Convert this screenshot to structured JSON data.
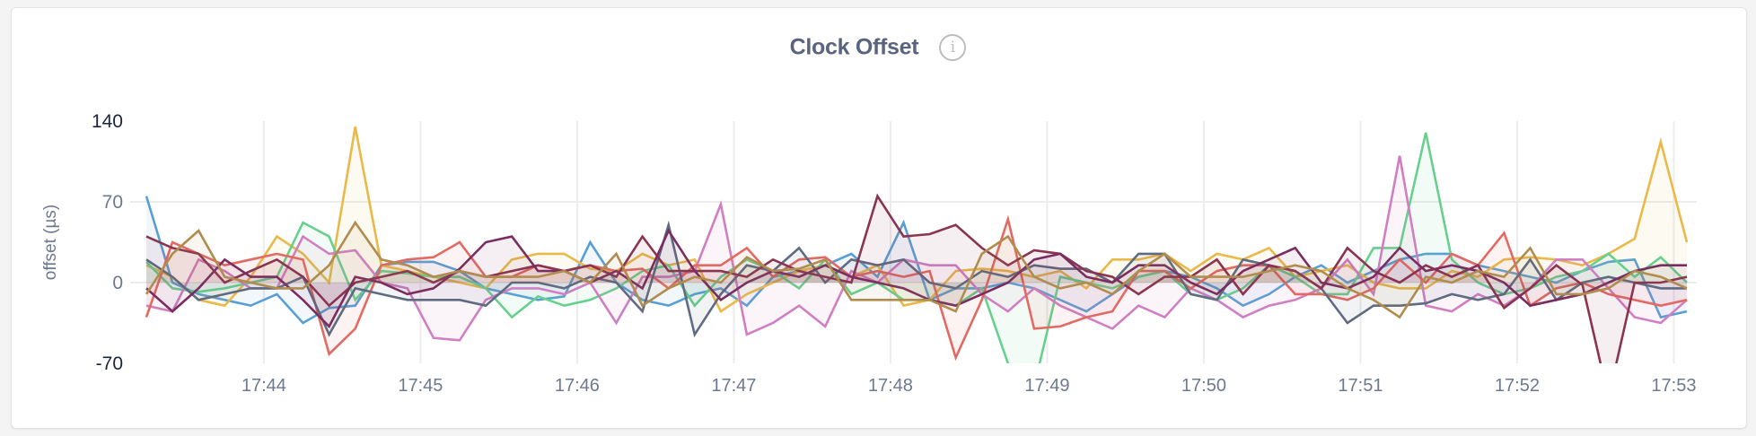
{
  "header": {
    "title": "Clock Offset",
    "info_icon": "info-circle-icon"
  },
  "chart_data": {
    "type": "area",
    "title": "Clock Offset",
    "xlabel": "",
    "ylabel": "offset (µs)",
    "ylim": [
      -70,
      140
    ],
    "yticks": [
      "140",
      "70",
      "0",
      "-70"
    ],
    "ytick_values": [
      140,
      70,
      0,
      -70
    ],
    "xticks": [
      "17:44",
      "17:45",
      "17:46",
      "17:47",
      "17:48",
      "17:49",
      "17:50",
      "17:51",
      "17:52",
      "17:53"
    ],
    "grid": true,
    "legend": "none",
    "x": [
      "17:43:15",
      "17:43:25",
      "17:43:35",
      "17:43:45",
      "17:43:55",
      "17:44:05",
      "17:44:15",
      "17:44:25",
      "17:44:35",
      "17:44:45",
      "17:44:55",
      "17:45:05",
      "17:45:15",
      "17:45:25",
      "17:45:35",
      "17:45:45",
      "17:45:55",
      "17:46:05",
      "17:46:15",
      "17:46:25",
      "17:46:35",
      "17:46:45",
      "17:46:55",
      "17:47:05",
      "17:47:15",
      "17:47:25",
      "17:47:35",
      "17:47:45",
      "17:47:55",
      "17:48:05",
      "17:48:15",
      "17:48:25",
      "17:48:35",
      "17:48:45",
      "17:48:55",
      "17:49:05",
      "17:49:15",
      "17:49:25",
      "17:49:35",
      "17:49:45",
      "17:49:55",
      "17:50:05",
      "17:50:15",
      "17:50:25",
      "17:50:35",
      "17:50:45",
      "17:50:55",
      "17:51:05",
      "17:51:15",
      "17:51:25",
      "17:51:35",
      "17:51:45",
      "17:51:55",
      "17:52:05",
      "17:52:15",
      "17:52:25",
      "17:52:35",
      "17:52:45",
      "17:52:55",
      "17:53:05"
    ],
    "series": [
      {
        "color": "#5a9fd4",
        "values": [
          75,
          0,
          -10,
          -15,
          -20,
          -10,
          -35,
          -22,
          -20,
          15,
          18,
          18,
          10,
          -5,
          -10,
          -15,
          -12,
          35,
          0,
          -15,
          -20,
          -10,
          -5,
          -20,
          5,
          10,
          15,
          25,
          5,
          52,
          -15,
          -5,
          -5,
          0,
          -5,
          -15,
          -25,
          -10,
          5,
          10,
          5,
          -5,
          -20,
          -10,
          5,
          15,
          0,
          10,
          20,
          25,
          25,
          15,
          10,
          5,
          0,
          10,
          18,
          20,
          -30,
          -25
        ]
      },
      {
        "color": "#e9b949",
        "values": [
          15,
          5,
          -15,
          -20,
          5,
          40,
          25,
          0,
          135,
          15,
          10,
          5,
          0,
          -5,
          20,
          25,
          25,
          12,
          10,
          25,
          15,
          20,
          -25,
          -10,
          0,
          10,
          15,
          5,
          15,
          -20,
          -15,
          10,
          12,
          10,
          5,
          10,
          -5,
          20,
          20,
          25,
          10,
          25,
          20,
          30,
          5,
          10,
          15,
          0,
          -5,
          -5,
          10,
          5,
          20,
          22,
          20,
          15,
          25,
          38,
          122,
          35
        ]
      },
      {
        "color": "#67d08e",
        "values": [
          18,
          -5,
          -8,
          -5,
          0,
          5,
          52,
          40,
          -15,
          10,
          8,
          5,
          5,
          -5,
          -30,
          -12,
          -20,
          -15,
          -5,
          10,
          15,
          -20,
          5,
          20,
          10,
          -5,
          20,
          -10,
          0,
          -15,
          -15,
          -20,
          -5,
          -70,
          -90,
          5,
          0,
          -5,
          5,
          10,
          -10,
          -15,
          -5,
          15,
          5,
          -10,
          -10,
          30,
          30,
          130,
          20,
          0,
          -10,
          -5,
          5,
          10,
          25,
          5,
          22,
          0
        ]
      },
      {
        "color": "#cf7fc2",
        "values": [
          -20,
          -25,
          20,
          10,
          -5,
          -5,
          40,
          25,
          28,
          0,
          -5,
          -48,
          -50,
          -15,
          -5,
          -5,
          -10,
          0,
          -35,
          5,
          5,
          10,
          68,
          -45,
          -35,
          -20,
          -38,
          10,
          0,
          20,
          15,
          15,
          -10,
          -25,
          -5,
          -20,
          -30,
          -40,
          -20,
          -30,
          -5,
          -15,
          -30,
          -20,
          -15,
          -5,
          20,
          -10,
          110,
          -20,
          -25,
          -10,
          -20,
          -5,
          20,
          20,
          -5,
          -30,
          -35,
          -15
        ]
      },
      {
        "color": "#e26a62",
        "values": [
          -30,
          35,
          25,
          15,
          20,
          25,
          20,
          -62,
          -40,
          15,
          20,
          22,
          35,
          5,
          5,
          15,
          10,
          15,
          10,
          12,
          -5,
          15,
          15,
          30,
          5,
          20,
          22,
          5,
          10,
          5,
          10,
          -65,
          -15,
          55,
          -40,
          -38,
          -30,
          -25,
          10,
          10,
          -5,
          10,
          15,
          15,
          -10,
          -10,
          -15,
          -5,
          20,
          0,
          25,
          15,
          43,
          -20,
          -5,
          0,
          -10,
          -15,
          -20,
          -15
        ]
      },
      {
        "color": "#5f6b80",
        "values": [
          20,
          5,
          -15,
          -10,
          -5,
          -5,
          5,
          -45,
          -5,
          -10,
          -15,
          -15,
          -15,
          -20,
          0,
          0,
          -5,
          5,
          0,
          -25,
          50,
          -45,
          -10,
          15,
          10,
          30,
          0,
          20,
          15,
          20,
          0,
          -5,
          10,
          5,
          15,
          12,
          12,
          0,
          25,
          25,
          -10,
          -15,
          20,
          15,
          10,
          -5,
          -35,
          -20,
          -20,
          -18,
          -10,
          -15,
          -10,
          20,
          -15,
          0,
          5,
          0,
          -5,
          -5
        ]
      },
      {
        "color": "#8a3550",
        "values": [
          40,
          30,
          25,
          0,
          10,
          20,
          5,
          -20,
          0,
          5,
          10,
          0,
          10,
          5,
          10,
          15,
          10,
          15,
          5,
          40,
          10,
          10,
          10,
          5,
          20,
          10,
          5,
          0,
          75,
          40,
          42,
          50,
          30,
          15,
          28,
          25,
          10,
          5,
          -10,
          5,
          5,
          20,
          -10,
          15,
          10,
          -5,
          30,
          10,
          0,
          15,
          5,
          15,
          -22,
          -5,
          15,
          -2,
          -100,
          0,
          0,
          5
        ]
      },
      {
        "color": "#7a2e60",
        "values": [
          -5,
          -25,
          -5,
          20,
          5,
          5,
          -15,
          -38,
          5,
          0,
          -10,
          -5,
          12,
          35,
          40,
          10,
          10,
          0,
          10,
          -5,
          45,
          10,
          -15,
          0,
          10,
          5,
          15,
          5,
          0,
          -5,
          -15,
          -20,
          -10,
          0,
          20,
          25,
          5,
          0,
          15,
          15,
          0,
          -10,
          10,
          20,
          30,
          0,
          -5,
          5,
          30,
          10,
          15,
          10,
          0,
          -20,
          -15,
          -10,
          0,
          10,
          15,
          15
        ]
      },
      {
        "color": "#b08c4f",
        "values": [
          -10,
          25,
          45,
          5,
          0,
          -5,
          -5,
          15,
          52,
          20,
          15,
          5,
          10,
          5,
          5,
          5,
          10,
          0,
          25,
          -20,
          -5,
          5,
          0,
          22,
          10,
          12,
          20,
          -15,
          -15,
          -15,
          -15,
          -25,
          25,
          40,
          5,
          -5,
          0,
          -10,
          10,
          25,
          5,
          5,
          5,
          10,
          15,
          10,
          -5,
          -15,
          -30,
          5,
          0,
          10,
          5,
          30,
          -10,
          -10,
          -5,
          10,
          5,
          -5
        ]
      }
    ]
  }
}
